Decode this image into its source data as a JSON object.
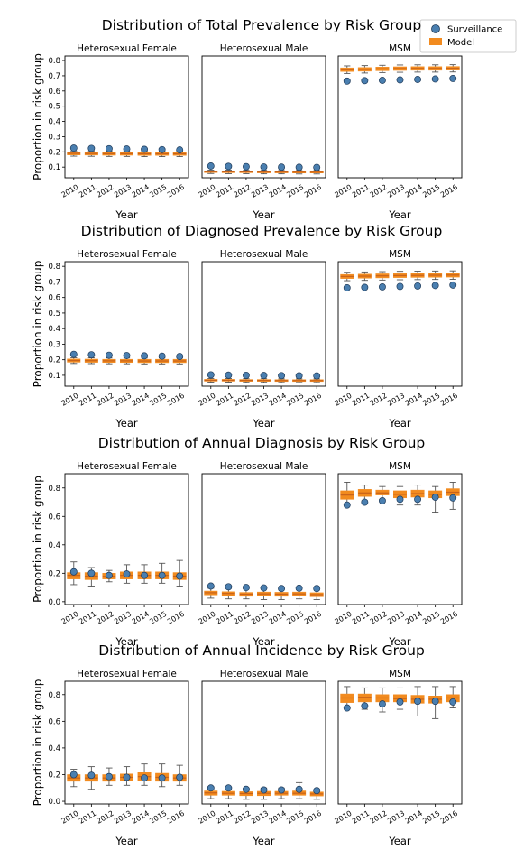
{
  "legend": {
    "location": "top-right",
    "surveillance_label": "Surveillance",
    "model_label": "Model",
    "surveillance_color": "#4a7fb0",
    "model_color": "#f28b1f",
    "model_median_color": "#c8621a"
  },
  "chart_data": [
    {
      "type": "box",
      "title": "Distribution of Total Prevalence by Risk Group",
      "ylabel": "Proportion in risk group",
      "xlabel": "Year",
      "categories": [
        "2010",
        "2011",
        "2012",
        "2013",
        "2014",
        "2015",
        "2016"
      ],
      "panels": [
        {
          "name": "Heterosexual Female",
          "ylim": [
            0.03,
            0.83
          ],
          "yticks": [
            0.1,
            0.2,
            0.3,
            0.4,
            0.5,
            0.6,
            0.7,
            0.8
          ],
          "yticklabels": [
            "0.1",
            "0.2",
            "0.3",
            "0.4",
            "0.5",
            "0.6",
            "0.7",
            "0.8"
          ],
          "surveillance": [
            0.225,
            0.223,
            0.221,
            0.219,
            0.217,
            0.215,
            0.213
          ],
          "model_median": [
            0.19,
            0.189,
            0.188,
            0.188,
            0.187,
            0.187,
            0.187
          ],
          "model_q1": [
            0.18,
            0.179,
            0.178,
            0.178,
            0.177,
            0.177,
            0.177
          ],
          "model_q3": [
            0.198,
            0.198,
            0.197,
            0.197,
            0.197,
            0.197,
            0.197
          ],
          "model_whisker_low": [
            0.172,
            0.171,
            0.17,
            0.17,
            0.169,
            0.169,
            0.169
          ],
          "model_whisker_high": [
            0.206,
            0.206,
            0.205,
            0.205,
            0.205,
            0.205,
            0.205
          ]
        },
        {
          "name": "Heterosexual Male",
          "ylim": [
            0.03,
            0.83
          ],
          "surveillance": [
            0.107,
            0.105,
            0.103,
            0.101,
            0.1,
            0.099,
            0.098
          ],
          "model_median": [
            0.07,
            0.069,
            0.069,
            0.068,
            0.068,
            0.067,
            0.067
          ],
          "model_q1": [
            0.064,
            0.063,
            0.063,
            0.062,
            0.062,
            0.061,
            0.061
          ],
          "model_q3": [
            0.075,
            0.075,
            0.074,
            0.074,
            0.073,
            0.073,
            0.073
          ],
          "model_whisker_low": [
            0.058,
            0.057,
            0.057,
            0.056,
            0.056,
            0.055,
            0.055
          ],
          "model_whisker_high": [
            0.08,
            0.08,
            0.079,
            0.079,
            0.078,
            0.078,
            0.078
          ]
        },
        {
          "name": "MSM",
          "ylim": [
            0.03,
            0.83
          ],
          "surveillance": [
            0.665,
            0.668,
            0.67,
            0.673,
            0.676,
            0.679,
            0.682
          ],
          "model_median": [
            0.74,
            0.742,
            0.745,
            0.747,
            0.748,
            0.748,
            0.749
          ],
          "model_q1": [
            0.728,
            0.73,
            0.733,
            0.735,
            0.736,
            0.736,
            0.737
          ],
          "model_q3": [
            0.752,
            0.754,
            0.757,
            0.759,
            0.76,
            0.76,
            0.761
          ],
          "model_whisker_low": [
            0.715,
            0.718,
            0.721,
            0.723,
            0.724,
            0.724,
            0.725
          ],
          "model_whisker_high": [
            0.765,
            0.767,
            0.769,
            0.771,
            0.772,
            0.772,
            0.773
          ]
        }
      ]
    },
    {
      "type": "box",
      "title": "Distribution of Diagnosed Prevalence by Risk Group",
      "ylabel": "Proportion in risk group",
      "xlabel": "Year",
      "categories": [
        "2010",
        "2011",
        "2012",
        "2013",
        "2014",
        "2015",
        "2016"
      ],
      "panels": [
        {
          "name": "Heterosexual Female",
          "ylim": [
            0.03,
            0.83
          ],
          "yticks": [
            0.1,
            0.2,
            0.3,
            0.4,
            0.5,
            0.6,
            0.7,
            0.8
          ],
          "yticklabels": [
            "0.1",
            "0.2",
            "0.3",
            "0.4",
            "0.5",
            "0.6",
            "0.7",
            "0.8"
          ],
          "surveillance": [
            0.235,
            0.232,
            0.229,
            0.227,
            0.225,
            0.223,
            0.221
          ],
          "model_median": [
            0.195,
            0.194,
            0.193,
            0.193,
            0.192,
            0.192,
            0.192
          ],
          "model_q1": [
            0.184,
            0.183,
            0.182,
            0.182,
            0.181,
            0.181,
            0.181
          ],
          "model_q3": [
            0.205,
            0.204,
            0.203,
            0.203,
            0.203,
            0.203,
            0.203
          ],
          "model_whisker_low": [
            0.176,
            0.175,
            0.174,
            0.174,
            0.173,
            0.173,
            0.173
          ],
          "model_whisker_high": [
            0.213,
            0.212,
            0.211,
            0.211,
            0.211,
            0.211,
            0.211
          ]
        },
        {
          "name": "Heterosexual Male",
          "ylim": [
            0.03,
            0.83
          ],
          "surveillance": [
            0.103,
            0.101,
            0.1,
            0.099,
            0.098,
            0.097,
            0.096
          ],
          "model_median": [
            0.068,
            0.068,
            0.067,
            0.067,
            0.066,
            0.066,
            0.066
          ],
          "model_q1": [
            0.062,
            0.062,
            0.061,
            0.061,
            0.06,
            0.06,
            0.06
          ],
          "model_q3": [
            0.074,
            0.074,
            0.073,
            0.073,
            0.072,
            0.072,
            0.072
          ],
          "model_whisker_low": [
            0.056,
            0.056,
            0.055,
            0.055,
            0.054,
            0.054,
            0.054
          ],
          "model_whisker_high": [
            0.079,
            0.079,
            0.078,
            0.078,
            0.077,
            0.077,
            0.077
          ]
        },
        {
          "name": "MSM",
          "ylim": [
            0.03,
            0.83
          ],
          "surveillance": [
            0.662,
            0.665,
            0.668,
            0.671,
            0.674,
            0.677,
            0.68
          ],
          "model_median": [
            0.735,
            0.737,
            0.739,
            0.741,
            0.742,
            0.743,
            0.744
          ],
          "model_q1": [
            0.722,
            0.724,
            0.726,
            0.728,
            0.729,
            0.73,
            0.731
          ],
          "model_q3": [
            0.748,
            0.75,
            0.752,
            0.754,
            0.755,
            0.756,
            0.757
          ],
          "model_whisker_low": [
            0.708,
            0.71,
            0.712,
            0.714,
            0.715,
            0.716,
            0.717
          ],
          "model_whisker_high": [
            0.762,
            0.764,
            0.766,
            0.768,
            0.769,
            0.77,
            0.771
          ]
        }
      ]
    },
    {
      "type": "box",
      "title": "Distribution of Annual Diagnosis by Risk Group",
      "ylabel": "Proportion in risk group",
      "xlabel": "Year",
      "categories": [
        "2010",
        "2011",
        "2012",
        "2013",
        "2014",
        "2015",
        "2016"
      ],
      "panels": [
        {
          "name": "Heterosexual Female",
          "ylim": [
            -0.02,
            0.9
          ],
          "yticks": [
            0.0,
            0.2,
            0.4,
            0.6,
            0.8
          ],
          "yticklabels": [
            "0.0",
            "0.2",
            "0.4",
            "0.6",
            "0.8"
          ],
          "surveillance": [
            0.21,
            0.2,
            0.185,
            0.195,
            0.185,
            0.185,
            0.18
          ],
          "model_median": [
            0.185,
            0.18,
            0.178,
            0.185,
            0.185,
            0.185,
            0.18
          ],
          "model_q1": [
            0.16,
            0.155,
            0.16,
            0.16,
            0.16,
            0.16,
            0.155
          ],
          "model_q3": [
            0.205,
            0.205,
            0.2,
            0.21,
            0.21,
            0.21,
            0.205
          ],
          "model_whisker_low": [
            0.12,
            0.11,
            0.14,
            0.13,
            0.13,
            0.13,
            0.11
          ],
          "model_whisker_high": [
            0.28,
            0.24,
            0.22,
            0.26,
            0.26,
            0.27,
            0.29
          ]
        },
        {
          "name": "Heterosexual Male",
          "ylim": [
            -0.02,
            0.9
          ],
          "surveillance": [
            0.11,
            0.105,
            0.1,
            0.097,
            0.093,
            0.095,
            0.093
          ],
          "model_median": [
            0.063,
            0.058,
            0.053,
            0.055,
            0.053,
            0.055,
            0.05
          ],
          "model_q1": [
            0.048,
            0.043,
            0.038,
            0.04,
            0.038,
            0.04,
            0.035
          ],
          "model_q3": [
            0.075,
            0.07,
            0.065,
            0.068,
            0.066,
            0.068,
            0.063
          ],
          "model_whisker_low": [
            0.025,
            0.02,
            0.02,
            0.015,
            0.015,
            0.02,
            0.015
          ],
          "model_whisker_high": [
            0.095,
            0.095,
            0.09,
            0.095,
            0.09,
            0.1,
            0.09
          ]
        },
        {
          "name": "MSM",
          "ylim": [
            -0.02,
            0.9
          ],
          "surveillance": [
            0.68,
            0.7,
            0.71,
            0.72,
            0.72,
            0.735,
            0.73
          ],
          "model_median": [
            0.75,
            0.765,
            0.765,
            0.755,
            0.76,
            0.755,
            0.77
          ],
          "model_q1": [
            0.72,
            0.74,
            0.75,
            0.73,
            0.735,
            0.73,
            0.745
          ],
          "model_q3": [
            0.78,
            0.79,
            0.785,
            0.78,
            0.785,
            0.78,
            0.795
          ],
          "model_whisker_low": [
            0.68,
            0.71,
            0.72,
            0.68,
            0.68,
            0.63,
            0.65
          ],
          "model_whisker_high": [
            0.84,
            0.82,
            0.81,
            0.81,
            0.82,
            0.81,
            0.84
          ]
        }
      ]
    },
    {
      "type": "box",
      "title": "Distribution of Annual Incidence by Risk Group",
      "ylabel": "Proportion in risk group",
      "xlabel": "Year",
      "categories": [
        "2010",
        "2011",
        "2012",
        "2013",
        "2014",
        "2015",
        "2016"
      ],
      "panels": [
        {
          "name": "Heterosexual Female",
          "ylim": [
            -0.02,
            0.9
          ],
          "yticks": [
            0.0,
            0.2,
            0.4,
            0.6,
            0.8
          ],
          "yticklabels": [
            "0.0",
            "0.2",
            "0.4",
            "0.6",
            "0.8"
          ],
          "surveillance": [
            0.2,
            0.195,
            0.185,
            0.18,
            0.175,
            0.175,
            0.18
          ],
          "model_median": [
            0.175,
            0.175,
            0.175,
            0.18,
            0.185,
            0.18,
            0.175
          ],
          "model_q1": [
            0.15,
            0.15,
            0.15,
            0.155,
            0.155,
            0.15,
            0.15
          ],
          "model_q3": [
            0.2,
            0.2,
            0.2,
            0.205,
            0.215,
            0.21,
            0.2
          ],
          "model_whisker_low": [
            0.11,
            0.09,
            0.12,
            0.12,
            0.12,
            0.11,
            0.12
          ],
          "model_whisker_high": [
            0.24,
            0.26,
            0.25,
            0.26,
            0.28,
            0.28,
            0.27
          ]
        },
        {
          "name": "Heterosexual Male",
          "ylim": [
            -0.02,
            0.9
          ],
          "surveillance": [
            0.1,
            0.1,
            0.09,
            0.085,
            0.085,
            0.09,
            0.08
          ],
          "model_median": [
            0.063,
            0.06,
            0.058,
            0.06,
            0.06,
            0.06,
            0.055
          ],
          "model_q1": [
            0.045,
            0.045,
            0.042,
            0.042,
            0.045,
            0.045,
            0.04
          ],
          "model_q3": [
            0.078,
            0.075,
            0.072,
            0.075,
            0.075,
            0.078,
            0.07
          ],
          "model_whisker_low": [
            0.02,
            0.02,
            0.015,
            0.015,
            0.02,
            0.02,
            0.015
          ],
          "model_whisker_high": [
            0.11,
            0.105,
            0.1,
            0.1,
            0.1,
            0.14,
            0.09
          ]
        },
        {
          "name": "MSM",
          "ylim": [
            -0.02,
            0.9
          ],
          "surveillance": [
            0.7,
            0.715,
            0.73,
            0.745,
            0.75,
            0.75,
            0.745
          ],
          "model_median": [
            0.775,
            0.78,
            0.775,
            0.77,
            0.765,
            0.765,
            0.775
          ],
          "model_q1": [
            0.74,
            0.745,
            0.745,
            0.745,
            0.735,
            0.735,
            0.745
          ],
          "model_q3": [
            0.805,
            0.805,
            0.8,
            0.8,
            0.795,
            0.79,
            0.8
          ],
          "model_whisker_low": [
            0.7,
            0.69,
            0.67,
            0.69,
            0.64,
            0.62,
            0.7
          ],
          "model_whisker_high": [
            0.86,
            0.85,
            0.85,
            0.85,
            0.86,
            0.86,
            0.86
          ]
        }
      ]
    }
  ]
}
